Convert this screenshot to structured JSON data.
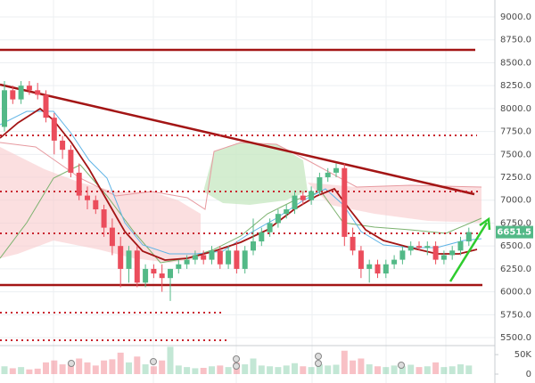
{
  "chart_data": {
    "type": "candlestick",
    "open": [
      7800,
      8200,
      8100,
      8250,
      8200,
      8150,
      7900,
      7650,
      7550,
      7300,
      7050,
      7000,
      6900,
      6700,
      6500,
      6250,
      6450,
      6100,
      6250,
      6200,
      6150,
      6250,
      6300,
      6350,
      6400,
      6350,
      6450,
      6300,
      6450,
      6250,
      6450,
      6550,
      6650,
      6750,
      6850,
      6900,
      7050,
      7000,
      7100,
      7250,
      7300,
      7350,
      6600,
      6450,
      6250,
      6300,
      6200,
      6300,
      6350,
      6450,
      6500,
      6480,
      6500,
      6350,
      6400,
      6450,
      6550
    ],
    "high": [
      8300,
      8250,
      8300,
      8300,
      8280,
      8200,
      7950,
      7700,
      7600,
      7400,
      7150,
      7050,
      6950,
      6800,
      6600,
      6500,
      6500,
      6300,
      6300,
      6300,
      6250,
      6350,
      6400,
      6450,
      6450,
      6500,
      6500,
      6500,
      6550,
      6500,
      6800,
      6700,
      6800,
      6900,
      6950,
      7100,
      7100,
      7150,
      7300,
      7350,
      7400,
      7400,
      6700,
      6500,
      6350,
      6350,
      6350,
      6400,
      6500,
      6550,
      6550,
      6550,
      6550,
      6450,
      6500,
      6600,
      6700
    ],
    "low": [
      7750,
      8050,
      8050,
      8150,
      8100,
      7850,
      7500,
      7450,
      7250,
      7000,
      6900,
      6850,
      6600,
      6400,
      6050,
      6100,
      6050,
      6050,
      6150,
      6000,
      5900,
      6200,
      6250,
      6300,
      6300,
      6300,
      6250,
      6250,
      6200,
      6200,
      6400,
      6500,
      6600,
      6700,
      6800,
      6850,
      6950,
      6950,
      7050,
      7200,
      7250,
      6500,
      6400,
      6150,
      6100,
      6150,
      6150,
      6250,
      6300,
      6400,
      6450,
      6400,
      6300,
      6300,
      6350,
      6400,
      6500
    ],
    "close": [
      8200,
      8100,
      8250,
      8200,
      8150,
      7900,
      7650,
      7550,
      7300,
      7050,
      7000,
      6900,
      6700,
      6500,
      6250,
      6450,
      6100,
      6250,
      6200,
      6150,
      6250,
      6300,
      6350,
      6400,
      6350,
      6450,
      6300,
      6450,
      6250,
      6450,
      6550,
      6650,
      6750,
      6850,
      6900,
      7050,
      7000,
      7100,
      7250,
      7300,
      7350,
      6600,
      6450,
      6250,
      6300,
      6200,
      6300,
      6350,
      6450,
      6500,
      6480,
      6500,
      6350,
      6400,
      6450,
      6550,
      6651.5
    ],
    "volume": [
      20000,
      15000,
      18000,
      12000,
      14000,
      30000,
      35000,
      25000,
      28000,
      40000,
      30000,
      22000,
      35000,
      38000,
      55000,
      30000,
      45000,
      25000,
      20000,
      35000,
      70000,
      22000,
      18000,
      15000,
      16000,
      20000,
      22000,
      18000,
      30000,
      25000,
      40000,
      22000,
      20000,
      18000,
      22000,
      28000,
      20000,
      18000,
      25000,
      22000,
      24000,
      60000,
      35000,
      40000,
      25000,
      20000,
      18000,
      22000,
      20000,
      24000,
      18000,
      20000,
      30000,
      18000,
      20000,
      25000,
      22000
    ],
    "up_color": "#53b987",
    "down_color": "#eb4d5c",
    "ylim": [
      5442,
      9185
    ],
    "yticks": [
      {
        "value": 5500,
        "label": "5500.0"
      },
      {
        "value": 5750,
        "label": "5750.0"
      },
      {
        "value": 6000,
        "label": "6000.0"
      },
      {
        "value": 6250,
        "label": "6250.0"
      },
      {
        "value": 6500,
        "label": "6500.0"
      },
      {
        "value": 6750,
        "label": "6750.0"
      },
      {
        "value": 7000,
        "label": "7000.0"
      },
      {
        "value": 7250,
        "label": "7250.0"
      },
      {
        "value": 7500,
        "label": "7500.0"
      },
      {
        "value": 7750,
        "label": "7750.0"
      },
      {
        "value": 8000,
        "label": "8000.0"
      },
      {
        "value": 8250,
        "label": "8250.0"
      },
      {
        "value": 8500,
        "label": "8500.0"
      },
      {
        "value": 8750,
        "label": "8750.0"
      },
      {
        "value": 9000,
        "label": "9000.0"
      }
    ],
    "vlim": [
      0,
      80000
    ],
    "vticks": [
      0,
      {
        "value": 50000,
        "label": "50K"
      }
    ],
    "last_price": 6651.5,
    "grid": true
  }
}
